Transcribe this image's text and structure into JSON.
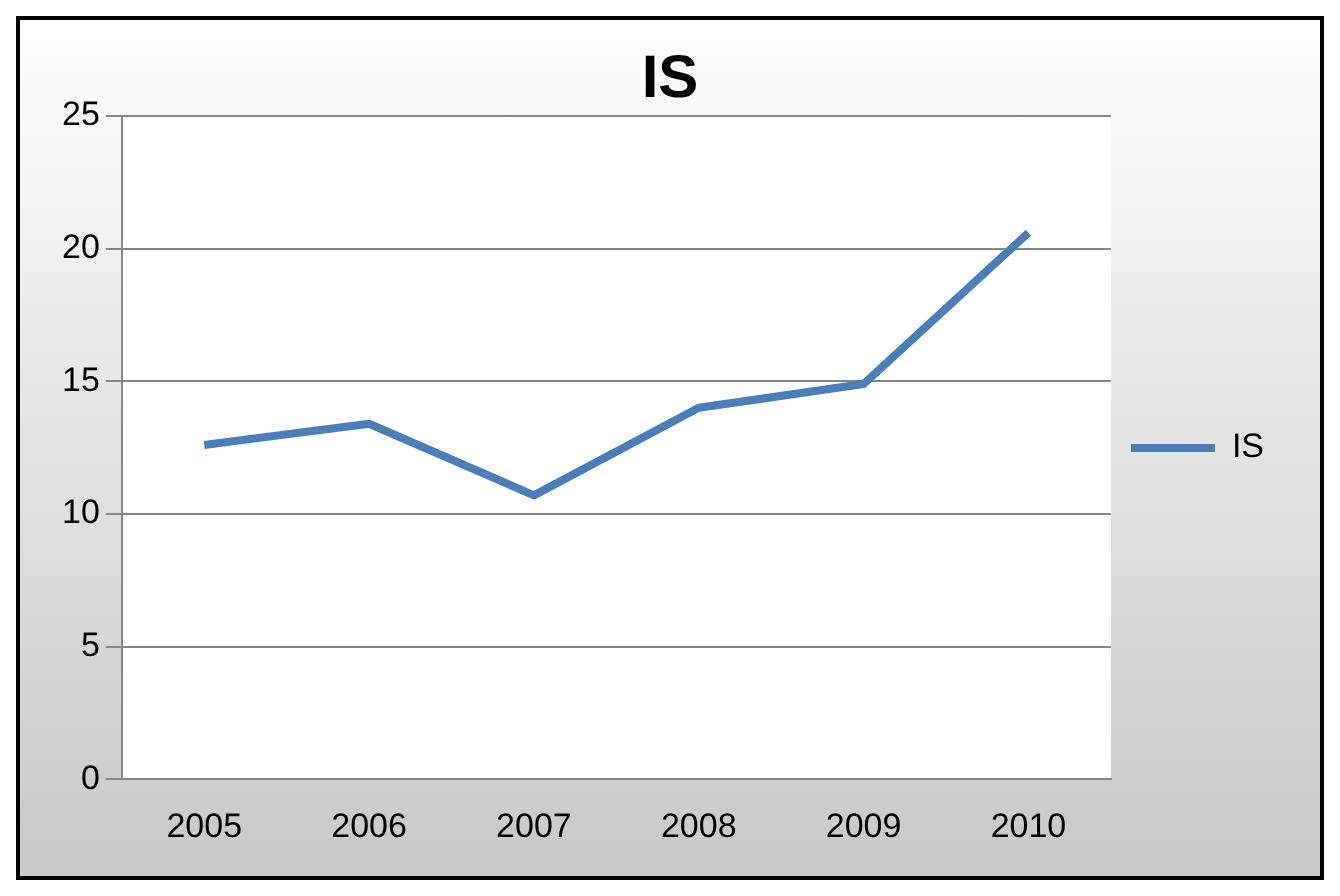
{
  "chart_data": {
    "type": "line",
    "title": "IS",
    "categories": [
      "2005",
      "2006",
      "2007",
      "2008",
      "2009",
      "2010"
    ],
    "series": [
      {
        "name": "IS",
        "color": "#4a7ebb",
        "values": [
          12.6,
          13.4,
          10.7,
          14.0,
          14.9,
          20.6
        ]
      }
    ],
    "ylim": [
      0,
      25
    ],
    "yticks": [
      0,
      5,
      10,
      15,
      20,
      25
    ],
    "grid": "y",
    "legend": "right",
    "marker": "none"
  }
}
